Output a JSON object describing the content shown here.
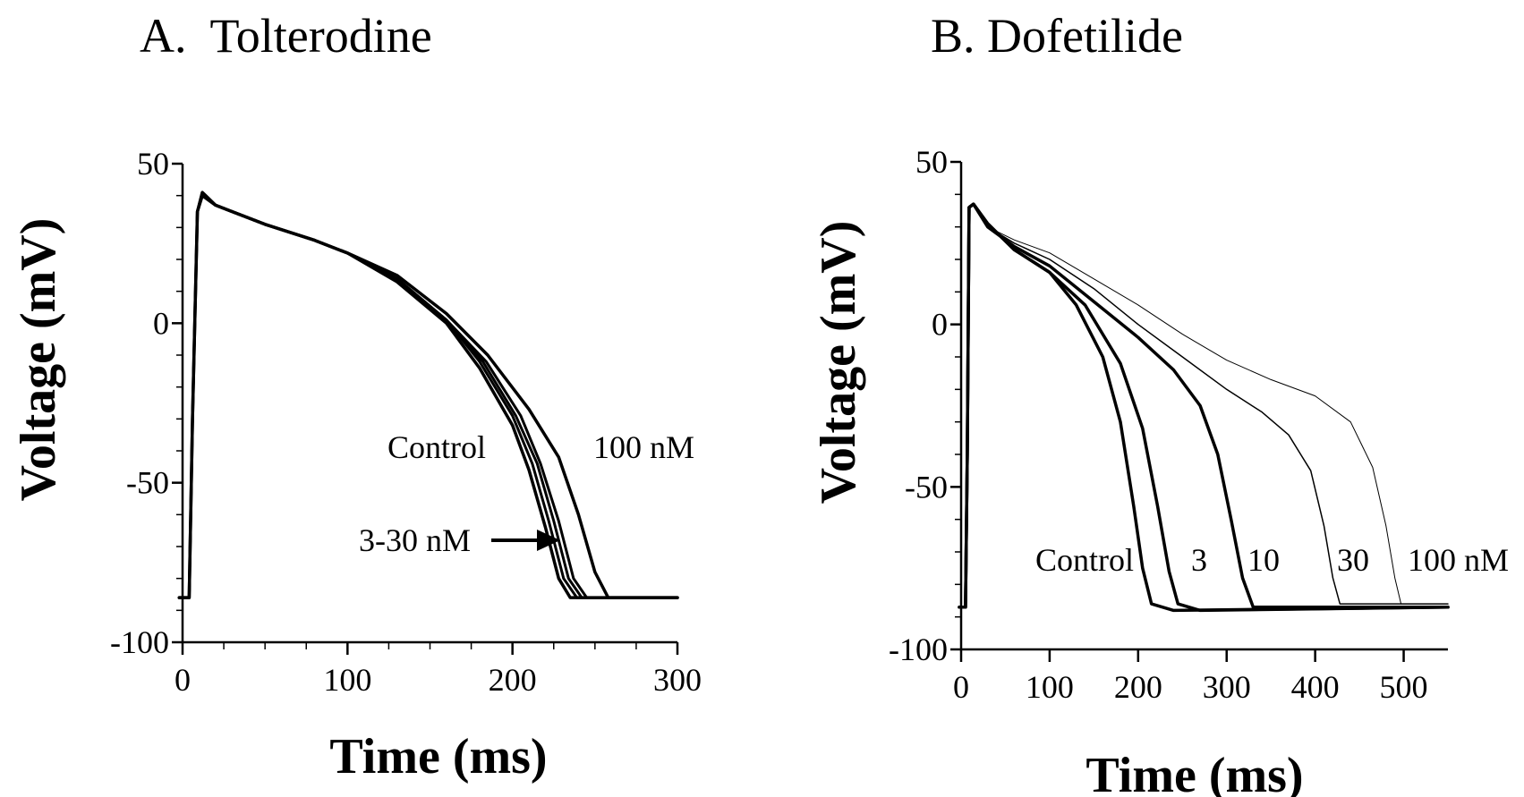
{
  "chart_data": [
    {
      "type": "line",
      "title": "A.  Tolterodine",
      "xlabel": "Time (ms)",
      "ylabel": "Voltage (mV)",
      "xlim": [
        0,
        300
      ],
      "ylim": [
        -100,
        50
      ],
      "xticks": [
        0,
        100,
        200,
        300
      ],
      "yticks": [
        50,
        0,
        -50,
        -100
      ],
      "grid": false,
      "series": [
        {
          "points": [
            [
              -2,
              -86
            ],
            [
              4,
              -86
            ],
            [
              6,
              -30
            ],
            [
              9,
              35
            ],
            [
              12,
              40
            ],
            [
              20,
              37
            ],
            [
              50,
              31
            ],
            [
              80,
              26
            ],
            [
              100,
              22
            ],
            [
              130,
              13
            ],
            [
              160,
              0
            ],
            [
              180,
              -14
            ],
            [
              200,
              -32
            ],
            [
              210,
              -46
            ],
            [
              220,
              -64
            ],
            [
              228,
              -80
            ],
            [
              235,
              -86
            ],
            [
              300,
              -86
            ]
          ]
        },
        {
          "points": [
            [
              -2,
              -86
            ],
            [
              4,
              -86
            ],
            [
              6,
              -30
            ],
            [
              9,
              35
            ],
            [
              12,
              41
            ],
            [
              20,
              37
            ],
            [
              50,
              31
            ],
            [
              80,
              26
            ],
            [
              100,
              22
            ],
            [
              130,
              14
            ],
            [
              160,
              1
            ],
            [
              180,
              -12
            ],
            [
              200,
              -29
            ],
            [
              212,
              -44
            ],
            [
              222,
              -62
            ],
            [
              231,
              -80
            ],
            [
              239,
              -86
            ],
            [
              300,
              -86
            ]
          ]
        },
        {
          "points": [
            [
              -2,
              -86
            ],
            [
              4,
              -86
            ],
            [
              6,
              -30
            ],
            [
              9,
              35
            ],
            [
              12,
              41
            ],
            [
              20,
              37
            ],
            [
              50,
              31
            ],
            [
              80,
              26
            ],
            [
              100,
              22
            ],
            [
              130,
              14
            ],
            [
              160,
              1
            ],
            [
              182,
              -12
            ],
            [
              202,
              -29
            ],
            [
              215,
              -44
            ],
            [
              225,
              -62
            ],
            [
              234,
              -80
            ],
            [
              242,
              -86
            ],
            [
              300,
              -86
            ]
          ]
        },
        {
          "points": [
            [
              -2,
              -86
            ],
            [
              4,
              -86
            ],
            [
              6,
              -30
            ],
            [
              9,
              35
            ],
            [
              12,
              41
            ],
            [
              20,
              37
            ],
            [
              50,
              31
            ],
            [
              80,
              26
            ],
            [
              100,
              22
            ],
            [
              130,
              14
            ],
            [
              160,
              1
            ],
            [
              184,
              -12
            ],
            [
              205,
              -29
            ],
            [
              217,
              -44
            ],
            [
              228,
              -62
            ],
            [
              237,
              -80
            ],
            [
              245,
              -86
            ],
            [
              300,
              -86
            ]
          ]
        },
        {
          "points": [
            [
              -2,
              -86
            ],
            [
              4,
              -86
            ],
            [
              6,
              -30
            ],
            [
              9,
              35
            ],
            [
              12,
              41
            ],
            [
              20,
              37
            ],
            [
              50,
              31
            ],
            [
              80,
              26
            ],
            [
              100,
              22
            ],
            [
              130,
              15
            ],
            [
              160,
              3
            ],
            [
              185,
              -10
            ],
            [
              210,
              -27
            ],
            [
              228,
              -42
            ],
            [
              240,
              -60
            ],
            [
              250,
              -78
            ],
            [
              258,
              -86
            ],
            [
              300,
              -86
            ]
          ]
        }
      ],
      "annotations": [
        "Control",
        "100 nM",
        "3-30 nM"
      ]
    },
    {
      "type": "line",
      "title": "B. Dofetilide",
      "xlabel": "Time (ms)",
      "ylabel": "Voltage (mV)",
      "xlim": [
        0,
        550
      ],
      "ylim": [
        -100,
        50
      ],
      "xticks": [
        0,
        100,
        200,
        300,
        400,
        500
      ],
      "yticks": [
        50,
        0,
        -50,
        -100
      ],
      "grid": false,
      "series": [
        {
          "name": "Control",
          "points": [
            [
              -2,
              -87
            ],
            [
              5,
              -87
            ],
            [
              7,
              -40
            ],
            [
              9,
              36
            ],
            [
              14,
              37
            ],
            [
              30,
              31
            ],
            [
              60,
              23
            ],
            [
              100,
              16
            ],
            [
              130,
              6
            ],
            [
              160,
              -10
            ],
            [
              180,
              -30
            ],
            [
              195,
              -56
            ],
            [
              205,
              -75
            ],
            [
              215,
              -86
            ],
            [
              240,
              -88
            ],
            [
              550,
              -87
            ]
          ]
        },
        {
          "name": "3",
          "points": [
            [
              -2,
              -87
            ],
            [
              5,
              -87
            ],
            [
              7,
              -40
            ],
            [
              9,
              36
            ],
            [
              14,
              37
            ],
            [
              30,
              31
            ],
            [
              60,
              23
            ],
            [
              100,
              16
            ],
            [
              140,
              6
            ],
            [
              180,
              -12
            ],
            [
              205,
              -32
            ],
            [
              222,
              -56
            ],
            [
              235,
              -76
            ],
            [
              245,
              -86
            ],
            [
              270,
              -88
            ],
            [
              550,
              -87
            ]
          ]
        },
        {
          "name": "10",
          "points": [
            [
              -2,
              -87
            ],
            [
              5,
              -87
            ],
            [
              7,
              -40
            ],
            [
              9,
              36
            ],
            [
              14,
              37
            ],
            [
              30,
              30
            ],
            [
              60,
              24
            ],
            [
              100,
              18
            ],
            [
              150,
              7
            ],
            [
              200,
              -4
            ],
            [
              240,
              -14
            ],
            [
              270,
              -25
            ],
            [
              290,
              -40
            ],
            [
              305,
              -60
            ],
            [
              318,
              -78
            ],
            [
              330,
              -87
            ],
            [
              360,
              -87
            ],
            [
              550,
              -87
            ]
          ]
        },
        {
          "name": "30",
          "points": [
            [
              -2,
              -87
            ],
            [
              5,
              -87
            ],
            [
              7,
              -40
            ],
            [
              9,
              36
            ],
            [
              14,
              37
            ],
            [
              30,
              30
            ],
            [
              60,
              25
            ],
            [
              100,
              20
            ],
            [
              150,
              11
            ],
            [
              200,
              0
            ],
            [
              250,
              -10
            ],
            [
              300,
              -20
            ],
            [
              340,
              -27
            ],
            [
              370,
              -34
            ],
            [
              395,
              -45
            ],
            [
              410,
              -62
            ],
            [
              420,
              -78
            ],
            [
              428,
              -86
            ],
            [
              460,
              -86
            ],
            [
              550,
              -86
            ]
          ]
        },
        {
          "name": "100 nM",
          "points": [
            [
              -2,
              -87
            ],
            [
              5,
              -87
            ],
            [
              7,
              -40
            ],
            [
              9,
              36
            ],
            [
              14,
              37
            ],
            [
              30,
              30
            ],
            [
              60,
              26
            ],
            [
              100,
              22
            ],
            [
              150,
              14
            ],
            [
              200,
              6
            ],
            [
              250,
              -3
            ],
            [
              300,
              -11
            ],
            [
              350,
              -17
            ],
            [
              400,
              -22
            ],
            [
              440,
              -30
            ],
            [
              465,
              -44
            ],
            [
              480,
              -62
            ],
            [
              490,
              -78
            ],
            [
              497,
              -86
            ],
            [
              520,
              -86
            ],
            [
              550,
              -86
            ]
          ]
        }
      ],
      "annotations": [
        "Control",
        "3",
        "10",
        "30",
        "100 nM"
      ]
    }
  ]
}
